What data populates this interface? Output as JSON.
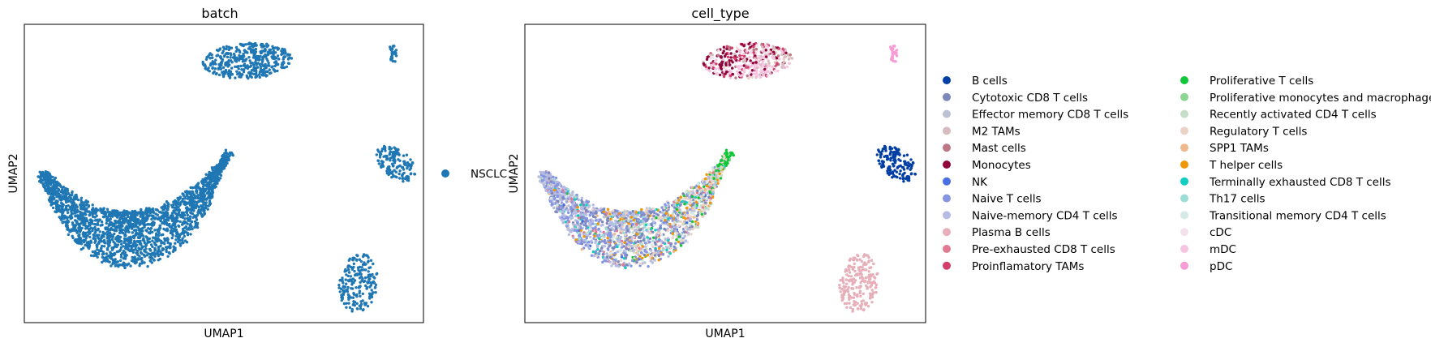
{
  "chart_data": [
    {
      "type": "scatter",
      "title": "batch",
      "xlabel": "UMAP1",
      "ylabel": "UMAP2",
      "grid": false,
      "ticks": false,
      "legend_position": "right",
      "legend": [
        {
          "name": "NSCLC",
          "color": "#1f77b4"
        }
      ]
    },
    {
      "type": "scatter",
      "title": "cell_type",
      "xlabel": "UMAP1",
      "ylabel": "UMAP2",
      "grid": false,
      "ticks": false,
      "legend_position": "right",
      "legend_columns": 2,
      "legend": [
        {
          "name": "B cells",
          "color": "#023fa5"
        },
        {
          "name": "Cytotoxic CD8 T cells",
          "color": "#7d87b9"
        },
        {
          "name": "Effector memory CD8 T cells",
          "color": "#bec1d4"
        },
        {
          "name": "M2 TAMs",
          "color": "#d6bcc0"
        },
        {
          "name": "Mast cells",
          "color": "#bb7784"
        },
        {
          "name": "Monocytes",
          "color": "#8e063b"
        },
        {
          "name": "NK",
          "color": "#4a6fe3"
        },
        {
          "name": "Naive T cells",
          "color": "#8595e1"
        },
        {
          "name": "Naive-memory CD4 T cells",
          "color": "#b5bbe3"
        },
        {
          "name": "Plasma B cells",
          "color": "#e6afb9"
        },
        {
          "name": "Pre-exhausted CD8 T cells",
          "color": "#e07b91"
        },
        {
          "name": "Proinflamatory TAMs",
          "color": "#d33f6a"
        },
        {
          "name": "Proliferative T cells",
          "color": "#11c638"
        },
        {
          "name": "Proliferative monocytes and macrophages",
          "color": "#8dd593"
        },
        {
          "name": "Recently activated CD4 T cells",
          "color": "#c6dec7"
        },
        {
          "name": "Regulatory T cells",
          "color": "#ead3c6"
        },
        {
          "name": "SPP1 TAMs",
          "color": "#f0b98d"
        },
        {
          "name": "T helper cells",
          "color": "#ef9708"
        },
        {
          "name": "Terminally exhausted CD8 T cells",
          "color": "#0fcfc0"
        },
        {
          "name": "Th17 cells",
          "color": "#9cded6"
        },
        {
          "name": "Transitional memory CD4 T cells",
          "color": "#d5eae7"
        },
        {
          "name": "cDC",
          "color": "#f3e1eb"
        },
        {
          "name": "mDC",
          "color": "#f6c4e1"
        },
        {
          "name": "pDC",
          "color": "#f79cd4"
        }
      ]
    }
  ]
}
